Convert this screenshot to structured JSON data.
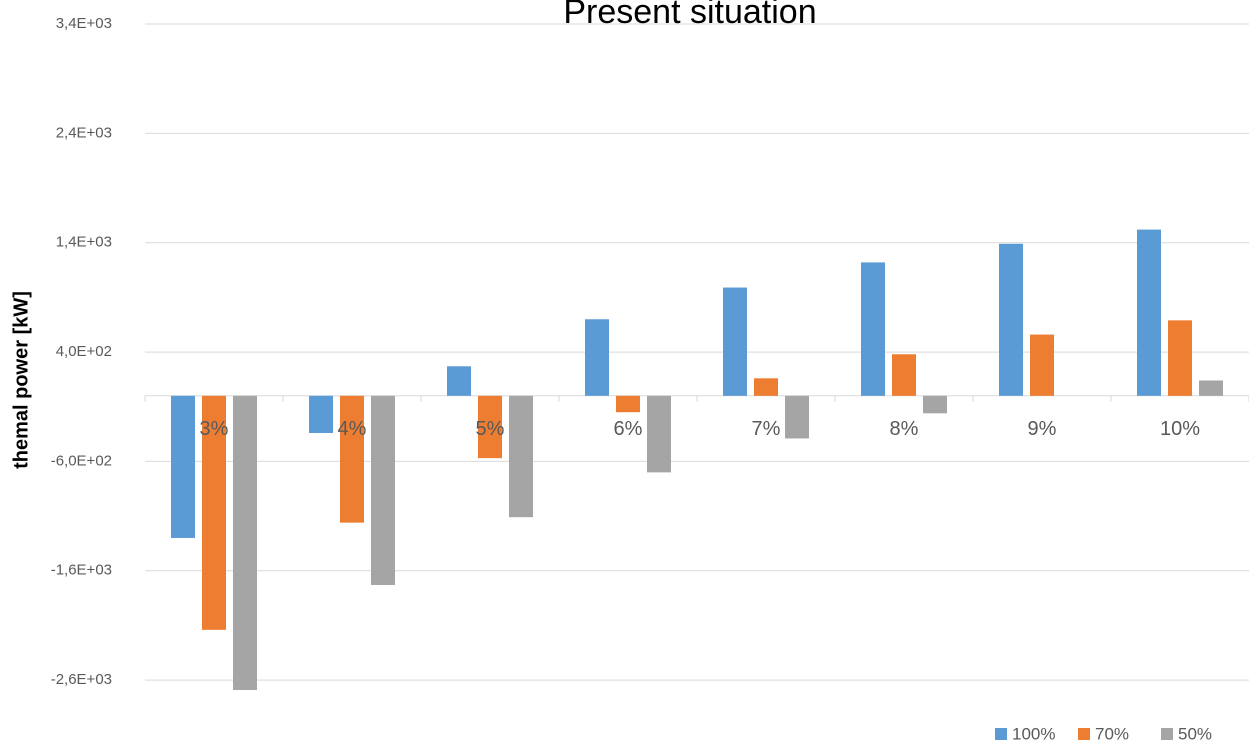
{
  "chart_data": {
    "type": "bar",
    "title": "Present situation",
    "y_label": "themal power [kW]",
    "categories": [
      "3%",
      "4%",
      "5%",
      "6%",
      "7%",
      "8%",
      "9%",
      "10%"
    ],
    "series": [
      {
        "name": "100%",
        "color": "#5b9bd5",
        "values": [
          -1300,
          -340,
          270,
          700,
          990,
          1220,
          1390,
          1520
        ]
      },
      {
        "name": "70%",
        "color": "#ed7d31",
        "values": [
          -2140,
          -1160,
          -570,
          -150,
          160,
          380,
          560,
          690
        ]
      },
      {
        "name": "50%",
        "color": "#a5a5a5",
        "values": [
          -2690,
          -1730,
          -1110,
          -700,
          -390,
          -160,
          0,
          140
        ]
      }
    ],
    "ylim": [
      -2800,
      3400
    ],
    "yticks": [
      {
        "value": 3400,
        "label": "3,4E+03"
      },
      {
        "value": 2400,
        "label": "2,4E+03"
      },
      {
        "value": 1400,
        "label": "1,4E+03"
      },
      {
        "value": 400,
        "label": "4,0E+02"
      },
      {
        "value": -600,
        "label": "-6,0E+02"
      },
      {
        "value": -1600,
        "label": "-1,6E+03"
      },
      {
        "value": -2600,
        "label": "-2,6E+03"
      }
    ],
    "grid": true,
    "legend": "bottom-right"
  }
}
